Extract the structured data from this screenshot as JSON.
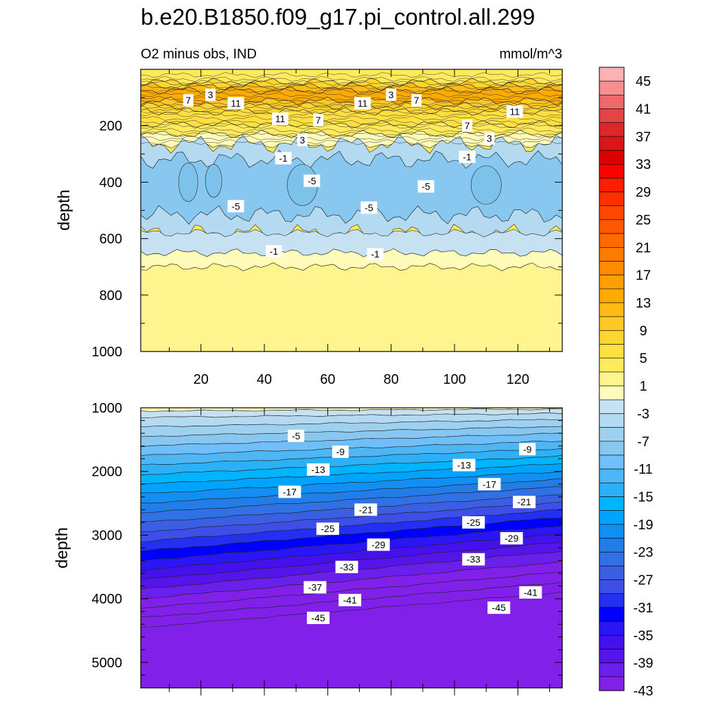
{
  "figure": {
    "title": "b.e20.B1850.f09_g17.pi_control.all.299",
    "subtitle_left": "O2 minus obs, IND",
    "subtitle_right": "mmol/m^3"
  },
  "chart_data": [
    {
      "type": "contour",
      "panel": "upper",
      "ylabel": "depth",
      "xlabel": "",
      "xlim": [
        1,
        134
      ],
      "ylim": [
        1000,
        0
      ],
      "x_ticks": [
        20,
        40,
        60,
        80,
        100,
        120
      ],
      "y_ticks": [
        200,
        400,
        600,
        800,
        1000
      ],
      "bands": [
        {
          "top": 0,
          "bottom": 45,
          "value": 5
        },
        {
          "top": 45,
          "bottom": 60,
          "value": 9
        },
        {
          "top": 60,
          "bottom": 75,
          "value": 13
        },
        {
          "top": 75,
          "bottom": 112,
          "value": 15
        },
        {
          "top": 112,
          "bottom": 130,
          "value": 11
        },
        {
          "top": 130,
          "bottom": 150,
          "value": 9
        },
        {
          "top": 150,
          "bottom": 195,
          "value": 7
        },
        {
          "top": 195,
          "bottom": 230,
          "value": 5
        },
        {
          "top": 230,
          "bottom": 265,
          "value": 1
        },
        {
          "top": 265,
          "bottom": 320,
          "value": -3
        },
        {
          "top": 320,
          "bottom": 515,
          "value": -7
        },
        {
          "top": 515,
          "bottom": 580,
          "value": -3
        },
        {
          "top": 580,
          "bottom": 650,
          "value": -1
        },
        {
          "top": 650,
          "bottom": 700,
          "value": 1
        },
        {
          "top": 700,
          "bottom": 1000,
          "value": 3
        }
      ],
      "contour_labels": [
        {
          "text": "7",
          "x": 16,
          "y": 110
        },
        {
          "text": "3",
          "x": 23,
          "y": 90
        },
        {
          "text": "11",
          "x": 31,
          "y": 120
        },
        {
          "text": "11",
          "x": 45,
          "y": 175
        },
        {
          "text": "7",
          "x": 57,
          "y": 180
        },
        {
          "text": "11",
          "x": 71,
          "y": 120
        },
        {
          "text": "3",
          "x": 80,
          "y": 90
        },
        {
          "text": "7",
          "x": 88,
          "y": 110
        },
        {
          "text": "7",
          "x": 104,
          "y": 200
        },
        {
          "text": "11",
          "x": 119,
          "y": 150
        },
        {
          "text": "3",
          "x": 111,
          "y": 245
        },
        {
          "text": "3",
          "x": 52,
          "y": 250
        },
        {
          "text": "-1",
          "x": 46,
          "y": 315
        },
        {
          "text": "-1",
          "x": 104,
          "y": 310
        },
        {
          "text": "-5",
          "x": 55,
          "y": 395
        },
        {
          "text": "-5",
          "x": 91,
          "y": 415
        },
        {
          "text": "-5",
          "x": 31,
          "y": 485
        },
        {
          "text": "-5",
          "x": 73,
          "y": 490
        },
        {
          "text": "-1",
          "x": 43,
          "y": 645
        },
        {
          "text": "-1",
          "x": 75,
          "y": 655
        }
      ]
    },
    {
      "type": "contour",
      "panel": "lower",
      "ylabel": "depth",
      "xlabel": "",
      "xlim": [
        1,
        134
      ],
      "ylim": [
        5400,
        1000
      ],
      "y_ticks": [
        1000,
        2000,
        3000,
        4000,
        5000
      ],
      "left_boundary_depths": [
        1050,
        1150,
        1300,
        1450,
        1600,
        1750,
        1900,
        2050,
        2200,
        2350,
        2500,
        2650,
        2800,
        2950,
        3100,
        3250,
        3400,
        3550,
        3700,
        3850,
        4000,
        4150,
        4300,
        4450
      ],
      "right_boundary_depths": [
        1020,
        1090,
        1180,
        1290,
        1400,
        1520,
        1640,
        1760,
        1880,
        2000,
        2120,
        2240,
        2360,
        2480,
        2600,
        2720,
        2850,
        2980,
        3110,
        3250,
        3420,
        3580,
        3740,
        3900,
        4080
      ],
      "contour_labels": [
        {
          "text": "-5",
          "x": 50,
          "y": 1440
        },
        {
          "text": "-9",
          "x": 64,
          "y": 1690
        },
        {
          "text": "-9",
          "x": 123,
          "y": 1650
        },
        {
          "text": "-13",
          "x": 57,
          "y": 1970
        },
        {
          "text": "-13",
          "x": 103,
          "y": 1900
        },
        {
          "text": "-17",
          "x": 48,
          "y": 2320
        },
        {
          "text": "-17",
          "x": 111,
          "y": 2200
        },
        {
          "text": "-21",
          "x": 72,
          "y": 2600
        },
        {
          "text": "-21",
          "x": 122,
          "y": 2480
        },
        {
          "text": "-25",
          "x": 60,
          "y": 2900
        },
        {
          "text": "-25",
          "x": 106,
          "y": 2800
        },
        {
          "text": "-29",
          "x": 76,
          "y": 3150
        },
        {
          "text": "-29",
          "x": 118,
          "y": 3050
        },
        {
          "text": "-33",
          "x": 66,
          "y": 3500
        },
        {
          "text": "-33",
          "x": 106,
          "y": 3380
        },
        {
          "text": "-37",
          "x": 56,
          "y": 3820
        },
        {
          "text": "-41",
          "x": 67,
          "y": 4020
        },
        {
          "text": "-41",
          "x": 124,
          "y": 3900
        },
        {
          "text": "-45",
          "x": 57,
          "y": 4300
        },
        {
          "text": "-45",
          "x": 114,
          "y": 4140
        }
      ]
    }
  ],
  "colorbar": {
    "tick_labels": [
      "45",
      "41",
      "37",
      "33",
      "29",
      "25",
      "21",
      "17",
      "13",
      "9",
      "5",
      "1",
      "-3",
      "-7",
      "-11",
      "-15",
      "-19",
      "-23",
      "-27",
      "-31",
      "-35",
      "-39",
      "-43"
    ],
    "colors_top_to_bottom": [
      "#fcb2b2",
      "#f69090",
      "#ee6a6a",
      "#e44444",
      "#dc2828",
      "#d81818",
      "#dd0000",
      "#ff0000",
      "#ff1e00",
      "#ff3000",
      "#ff4700",
      "#ff5800",
      "#ff6a00",
      "#ff7a00",
      "#ff8c00",
      "#ff9e00",
      "#ffaa00",
      "#ffbb14",
      "#ffc825",
      "#ffd530",
      "#ffe040",
      "#ffea5c",
      "#fff48e",
      "#fffbb8",
      "#c6e2f2",
      "#b4daf1",
      "#9ed0ef",
      "#88c7f0",
      "#70befa",
      "#4db6f5",
      "#2cb0f7",
      "#00b4ff",
      "#00a4ff",
      "#128ff3",
      "#227de8",
      "#3072e6",
      "#3a5fe3",
      "#3d4fe6",
      "#2330f2",
      "#0000ff",
      "#2a15f5",
      "#4411ec",
      "#5515e8",
      "#6a20ea",
      "#8020e8"
    ]
  }
}
